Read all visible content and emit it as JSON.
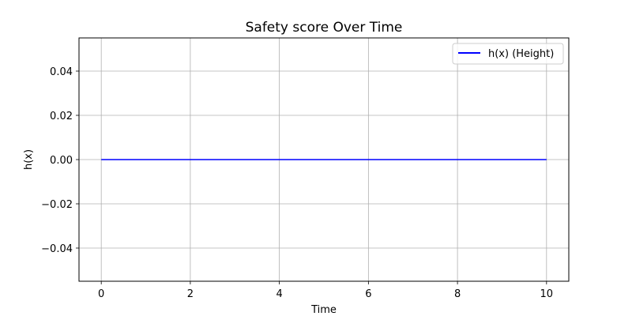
{
  "chart_data": {
    "type": "line",
    "title": "Safety score Over Time",
    "xlabel": "Time",
    "ylabel": "h(x)",
    "xlim": [
      -0.5,
      10.5
    ],
    "ylim": [
      -0.055,
      0.055
    ],
    "xticks": [
      0,
      2,
      4,
      6,
      8,
      10
    ],
    "xtick_labels": [
      "0",
      "2",
      "4",
      "6",
      "8",
      "10"
    ],
    "yticks": [
      -0.04,
      -0.02,
      0.0,
      0.02,
      0.04
    ],
    "ytick_labels": [
      "−0.04",
      "−0.02",
      "0.00",
      "0.02",
      "0.04"
    ],
    "grid": true,
    "legend_position": "top-right",
    "series": [
      {
        "name": "h(x) (Height)",
        "color": "#0000ff",
        "x": [
          0,
          10
        ],
        "y": [
          0.0,
          0.0
        ]
      }
    ]
  }
}
